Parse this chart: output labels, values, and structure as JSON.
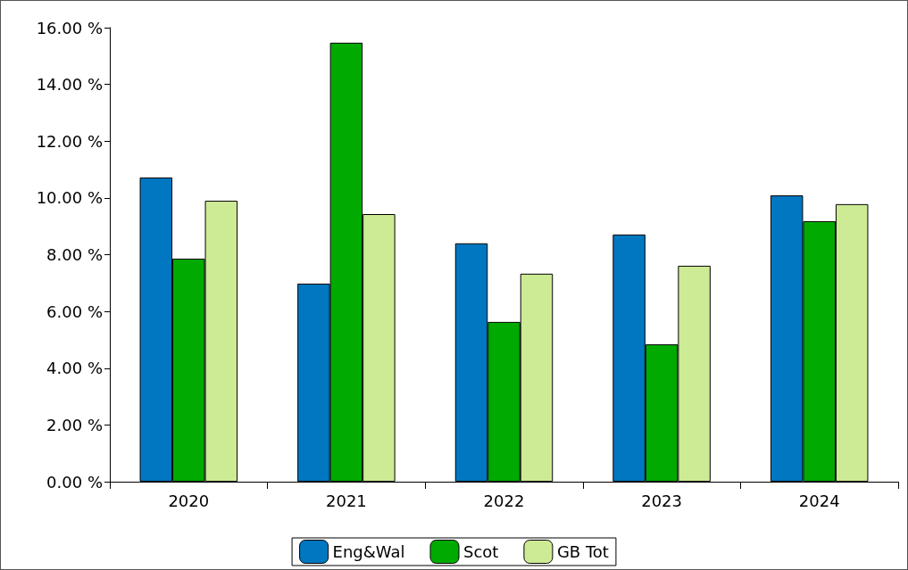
{
  "chart_data": {
    "type": "bar",
    "categories": [
      "2020",
      "2021",
      "2022",
      "2023",
      "2024"
    ],
    "series": [
      {
        "name": "Eng&Wal",
        "color": "#0077c0",
        "values": [
          10.72,
          6.98,
          8.4,
          8.71,
          10.09
        ]
      },
      {
        "name": "Scot",
        "color": "#00aa00",
        "values": [
          7.86,
          15.47,
          5.63,
          4.84,
          9.18
        ]
      },
      {
        "name": "GB Tot",
        "color": "#cdeb95",
        "values": [
          9.9,
          9.43,
          7.33,
          7.61,
          9.78
        ]
      }
    ],
    "ylim": [
      0,
      16
    ],
    "yticks": [
      {
        "value": 0,
        "label": "0.00 %"
      },
      {
        "value": 2,
        "label": "2.00 %"
      },
      {
        "value": 4,
        "label": "4.00 %"
      },
      {
        "value": 6,
        "label": "6.00 %"
      },
      {
        "value": 8,
        "label": "8.00 %"
      },
      {
        "value": 10,
        "label": "10.00 %"
      },
      {
        "value": 12,
        "label": "12.00 %"
      },
      {
        "value": 14,
        "label": "14.00 %"
      },
      {
        "value": 16,
        "label": "16.00 %"
      }
    ],
    "grid": false,
    "legend": "bottom"
  }
}
